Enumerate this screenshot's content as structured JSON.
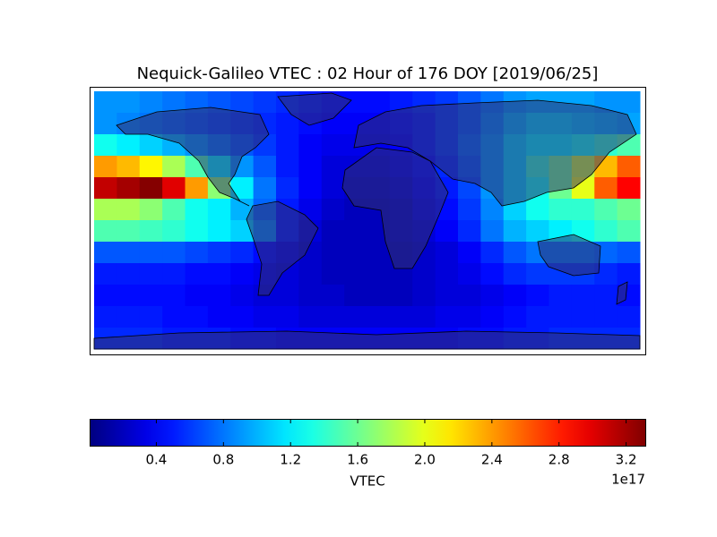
{
  "chart_data": {
    "type": "heatmap",
    "title": "Nequick-Galileo VTEC : 02 Hour of 176 DOY [2019/06/25]",
    "z": [
      [
        0.9,
        0.9,
        0.85,
        0.8,
        0.75,
        0.7,
        0.65,
        0.6,
        0.55,
        0.5,
        0.45,
        0.45,
        0.45,
        0.5,
        0.55,
        0.6,
        0.7,
        0.8,
        0.9,
        0.95,
        0.95,
        0.95,
        0.9,
        0.9
      ],
      [
        0.9,
        0.85,
        0.8,
        0.75,
        0.7,
        0.65,
        0.6,
        0.55,
        0.5,
        0.45,
        0.4,
        0.4,
        0.4,
        0.45,
        0.5,
        0.6,
        0.7,
        0.85,
        1.0,
        1.1,
        1.1,
        1.05,
        1.0,
        0.95
      ],
      [
        1.3,
        1.2,
        1.1,
        1.0,
        0.9,
        0.8,
        0.7,
        0.6,
        0.5,
        0.4,
        0.35,
        0.35,
        0.35,
        0.4,
        0.5,
        0.6,
        0.75,
        0.9,
        1.1,
        1.2,
        1.2,
        1.3,
        1.4,
        1.5
      ],
      [
        2.4,
        2.3,
        2.1,
        1.8,
        1.5,
        1.2,
        0.9,
        0.7,
        0.5,
        0.4,
        0.3,
        0.3,
        0.3,
        0.35,
        0.45,
        0.55,
        0.7,
        0.9,
        1.1,
        1.4,
        1.6,
        1.9,
        2.3,
        2.6
      ],
      [
        3.1,
        3.2,
        3.3,
        3.0,
        2.4,
        1.7,
        1.2,
        0.8,
        0.55,
        0.4,
        0.3,
        0.25,
        0.25,
        0.3,
        0.4,
        0.5,
        0.65,
        0.9,
        1.1,
        1.3,
        1.6,
        2.0,
        2.6,
        2.9
      ],
      [
        1.8,
        1.8,
        1.7,
        1.5,
        1.3,
        1.2,
        1.0,
        0.75,
        0.5,
        0.35,
        0.25,
        0.2,
        0.2,
        0.25,
        0.35,
        0.45,
        0.6,
        0.85,
        1.1,
        1.3,
        1.4,
        1.4,
        1.5,
        1.6
      ],
      [
        1.5,
        1.5,
        1.45,
        1.4,
        1.3,
        1.2,
        1.1,
        0.85,
        0.5,
        0.3,
        0.2,
        0.2,
        0.2,
        0.25,
        0.3,
        0.4,
        0.55,
        0.8,
        1.0,
        1.1,
        1.2,
        1.3,
        1.4,
        1.5
      ],
      [
        0.7,
        0.7,
        0.7,
        0.7,
        0.65,
        0.6,
        0.55,
        0.45,
        0.35,
        0.25,
        0.2,
        0.2,
        0.2,
        0.2,
        0.25,
        0.3,
        0.4,
        0.55,
        0.7,
        0.8,
        0.8,
        0.8,
        0.75,
        0.7
      ],
      [
        0.5,
        0.5,
        0.5,
        0.5,
        0.45,
        0.45,
        0.4,
        0.35,
        0.3,
        0.25,
        0.2,
        0.2,
        0.2,
        0.2,
        0.25,
        0.3,
        0.35,
        0.45,
        0.55,
        0.6,
        0.6,
        0.6,
        0.55,
        0.5
      ],
      [
        0.45,
        0.45,
        0.45,
        0.45,
        0.4,
        0.4,
        0.35,
        0.3,
        0.3,
        0.25,
        0.25,
        0.2,
        0.2,
        0.2,
        0.25,
        0.3,
        0.3,
        0.35,
        0.4,
        0.45,
        0.5,
        0.5,
        0.5,
        0.45
      ],
      [
        0.5,
        0.5,
        0.5,
        0.45,
        0.45,
        0.4,
        0.4,
        0.35,
        0.35,
        0.3,
        0.3,
        0.3,
        0.3,
        0.3,
        0.3,
        0.35,
        0.35,
        0.4,
        0.45,
        0.5,
        0.5,
        0.5,
        0.5,
        0.5
      ],
      [
        0.55,
        0.55,
        0.55,
        0.5,
        0.5,
        0.5,
        0.45,
        0.45,
        0.4,
        0.4,
        0.4,
        0.4,
        0.4,
        0.4,
        0.4,
        0.4,
        0.45,
        0.45,
        0.5,
        0.5,
        0.55,
        0.55,
        0.55,
        0.55
      ]
    ],
    "clim": [
      0.005,
      3.317
    ],
    "colorbar_ticks": [
      0.4,
      0.8,
      1.2,
      1.6,
      {
        "value": 2,
        "label": "2.0"
      },
      2.4,
      2.8,
      3.2
    ],
    "colorbar_label": "VTEC",
    "colorbar_offset": "1e17",
    "colormap": "jet"
  }
}
